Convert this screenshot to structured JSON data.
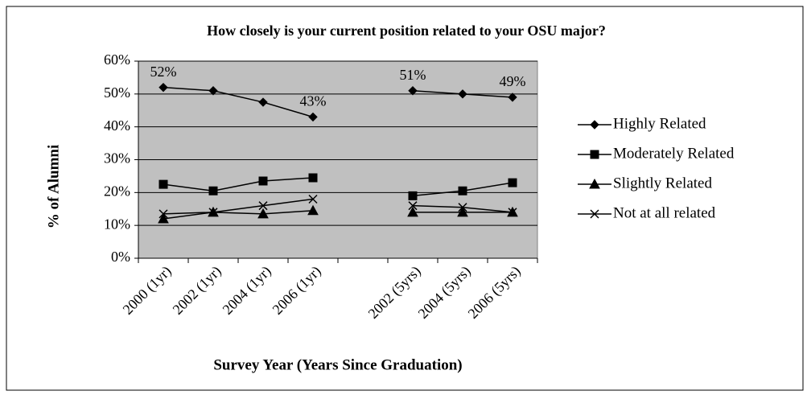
{
  "chart_data": {
    "type": "line",
    "title": "How closely is your current position related to your OSU major?",
    "x_label": "Survey Year (Years Since Graduation)",
    "y_label": "% of Alumni",
    "categories": [
      "2000 (1yr)",
      "2002 (1yr)",
      "2004 (1yr)",
      "2006 (1yr)",
      null,
      "2002 (5yrs)",
      "2004 (5yrs)",
      "2006 (5yrs)"
    ],
    "series": [
      {
        "name": "Highly Related",
        "color": "#000000",
        "marker": "diamond",
        "values": [
          52,
          51,
          47.5,
          43,
          null,
          51,
          50,
          49
        ],
        "value_labels": [
          "52%",
          null,
          null,
          "43%",
          null,
          "51%",
          null,
          "49%"
        ]
      },
      {
        "name": "Moderately Related",
        "color": "#000000",
        "marker": "square",
        "values": [
          22.5,
          20.5,
          23.5,
          24.5,
          null,
          19,
          20.5,
          23
        ]
      },
      {
        "name": "Slightly Related",
        "color": "#000000",
        "marker": "triangle",
        "values": [
          12,
          14,
          13.5,
          14.5,
          null,
          14,
          14,
          14
        ]
      },
      {
        "name": "Not at all related",
        "color": "#000000",
        "marker": "x",
        "values": [
          13.5,
          14,
          16,
          18,
          null,
          16,
          15.5,
          14
        ]
      }
    ],
    "ylim": [
      0,
      60
    ],
    "yticks": [
      {
        "value": 0,
        "label": "0%"
      },
      {
        "value": 10,
        "label": "10%"
      },
      {
        "value": 20,
        "label": "20%"
      },
      {
        "value": 30,
        "label": "30%"
      },
      {
        "value": 40,
        "label": "40%"
      },
      {
        "value": 50,
        "label": "50%"
      },
      {
        "value": 60,
        "label": "60%"
      }
    ],
    "grid": true,
    "plot_background": "#c0c0c0",
    "legend": "right"
  }
}
